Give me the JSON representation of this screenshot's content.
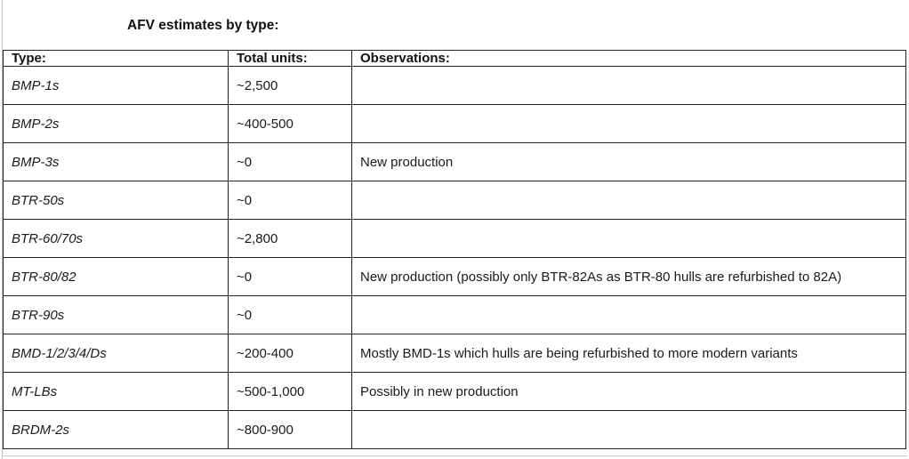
{
  "title": "AFV estimates by type:",
  "table": {
    "headers": [
      "Type:",
      "Total units:",
      "Observations:"
    ],
    "rows": [
      {
        "type": "BMP-1s",
        "units": "~2,500",
        "obs": ""
      },
      {
        "type": "BMP-2s",
        "units": "~400-500",
        "obs": ""
      },
      {
        "type": "BMP-3s",
        "units": "~0",
        "obs": "New production"
      },
      {
        "type": "BTR-50s",
        "units": "~0",
        "obs": ""
      },
      {
        "type": "BTR-60/70s",
        "units": "~2,800",
        "obs": ""
      },
      {
        "type": "BTR-80/82",
        "units": "~0",
        "obs": "New production (possibly only BTR-82As as BTR-80 hulls are refurbished to 82A)"
      },
      {
        "type": "BTR-90s",
        "units": "~0",
        "obs": ""
      },
      {
        "type": "BMD-1/2/3/4/Ds",
        "units": "~200-400",
        "obs": "Mostly BMD-1s which hulls are being refurbished to more modern variants"
      },
      {
        "type": "MT-LBs",
        "units": "~500-1,000",
        "obs": "Possibly in new production"
      },
      {
        "type": "BRDM-2s",
        "units": "~800-900",
        "obs": ""
      }
    ]
  },
  "colors": {
    "border": "#222222",
    "text": "#1a1a1a",
    "page_edge": "#c3c3c3"
  }
}
